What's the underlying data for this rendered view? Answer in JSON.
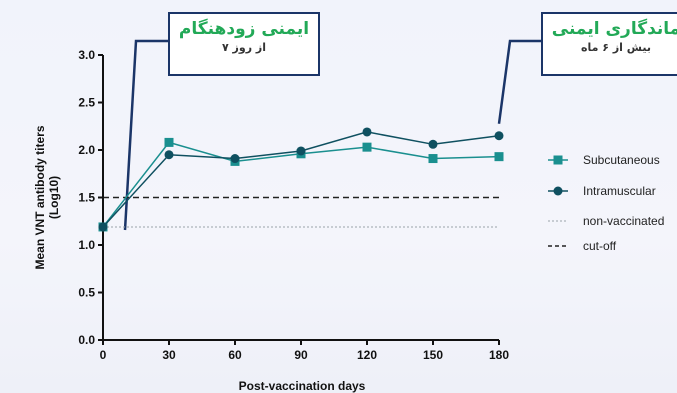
{
  "chart_data": {
    "type": "line",
    "xlabel": "Post-vaccination days",
    "ylabel": "Mean VNT antibody titers\n(Log10)",
    "x": [
      0,
      30,
      60,
      90,
      120,
      150,
      180
    ],
    "xticks": [
      "0",
      "30",
      "60",
      "90",
      "120",
      "150",
      "180"
    ],
    "yticks": [
      "0.0",
      "0.5",
      "1.0",
      "1.5",
      "2.0",
      "2.5",
      "3.0"
    ],
    "xlim": [
      0,
      180
    ],
    "ylim": [
      0,
      3.0
    ],
    "grid": false,
    "legend_position": "right",
    "series": [
      {
        "name": "Subcutaneous",
        "marker": "square",
        "color": "#1a8f8f",
        "values": [
          1.19,
          2.08,
          1.88,
          1.96,
          2.03,
          1.91,
          1.93
        ]
      },
      {
        "name": "Intramuscular",
        "marker": "circle",
        "color": "#0f5060",
        "values": [
          1.19,
          1.95,
          1.91,
          1.99,
          2.19,
          2.06,
          2.15
        ]
      }
    ],
    "reference_lines": [
      {
        "name": "non-vaccinated",
        "y": 1.19,
        "style": "dotted",
        "color": "#9aa3a8"
      },
      {
        "name": "cut-off",
        "y": 1.5,
        "style": "dashed",
        "color": "#222222"
      }
    ],
    "annotations": [
      {
        "title": "ایمنی زودهنگام",
        "subtitle": "از روز ۷",
        "points_to_x": 10
      },
      {
        "title": "ماندگاری ایمنی",
        "subtitle": "بیش از ۶ ماه",
        "points_to_x": 180
      }
    ]
  },
  "colors": {
    "callout_border": "#1b3568",
    "callout_title": "#22a957"
  }
}
